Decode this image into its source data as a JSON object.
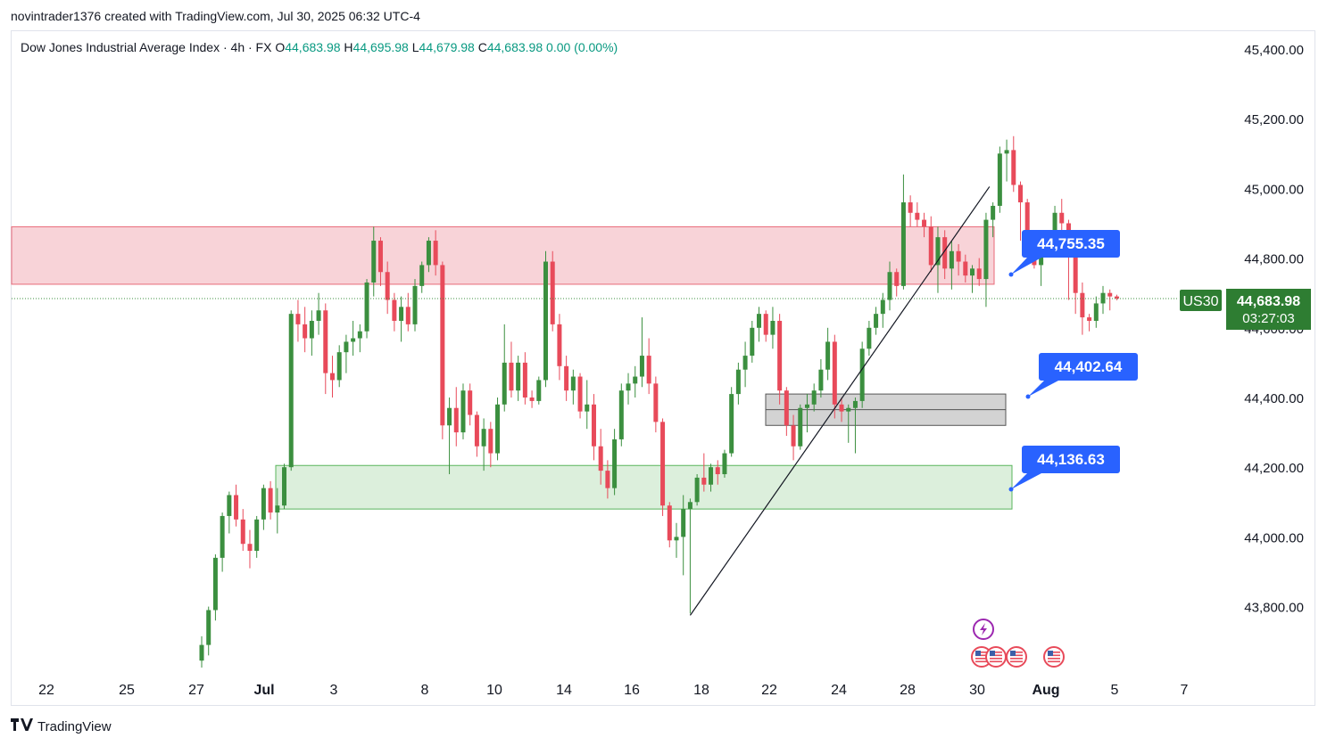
{
  "header": {
    "author_line": "novintrader1376 created with TradingView.com, Jul 30, 2025 06:32 UTC-4"
  },
  "legend": {
    "symbol": "Dow Jones Industrial Average Index · 4h · FX",
    "o_label": "O",
    "o": "44,683.98",
    "h_label": "H",
    "h": "44,695.98",
    "l_label": "L",
    "l": "44,679.98",
    "c_label": "C",
    "c": "44,683.98",
    "change": "0.00 (0.00%)"
  },
  "footer": {
    "brand": "TradingView",
    "logo": "tradingview-logo-icon"
  },
  "colors": {
    "up": "#3b8f3f",
    "down": "#e84a5a",
    "resistance_fill": "#f8d3d8",
    "resistance_stroke": "#e86a78",
    "support_fill": "#dcefdc",
    "support_stroke": "#5ab55c",
    "gray_zone": "#d3d3d3",
    "callout": "#2962ff",
    "price_badge": "#2e7d32"
  },
  "chart_data": {
    "type": "candlestick",
    "ylim": [
      43580,
      45460
    ],
    "y_ticks": [
      "45,400.00",
      "45,200.00",
      "45,000.00",
      "44,800.00",
      "44,600.00",
      "44,400.00",
      "44,200.00",
      "44,000.00",
      "43,800.00"
    ],
    "y_tick_values": [
      45400,
      45200,
      45000,
      44800,
      44600,
      44400,
      44200,
      44000,
      43800
    ],
    "x_ticks": [
      "22",
      "25",
      "27",
      "Jul",
      "3",
      "8",
      "10",
      "14",
      "16",
      "18",
      "22",
      "24",
      "28",
      "30",
      "Aug",
      "5",
      "7"
    ],
    "last_price": 44683.98,
    "ticker_badge": "US30",
    "price_badge": "44,683.98",
    "countdown": "03:27:03",
    "zones": [
      {
        "name": "resistance-zone",
        "from": 44725,
        "to": 44890
      },
      {
        "name": "support-zone",
        "from": 44080,
        "to": 44205
      },
      {
        "name": "gray-zone",
        "from": 44320,
        "to": 44410
      }
    ],
    "trendline": {
      "from": {
        "x": "Jul 16",
        "y": 43775
      },
      "to": {
        "x": "Jul 30",
        "y": 45005
      }
    },
    "callouts": [
      "44,755.35",
      "44,402.64",
      "44,136.63"
    ],
    "candles": [
      [
        43645,
        43715,
        43625,
        43690
      ],
      [
        43690,
        43800,
        43660,
        43790
      ],
      [
        43790,
        43950,
        43760,
        43940
      ],
      [
        43940,
        44070,
        43900,
        44060
      ],
      [
        44060,
        44130,
        44010,
        44120
      ],
      [
        44120,
        44150,
        44030,
        44050
      ],
      [
        44050,
        44080,
        43960,
        43980
      ],
      [
        43980,
        44020,
        43910,
        43960
      ],
      [
        43960,
        44060,
        43940,
        44050
      ],
      [
        44050,
        44150,
        44020,
        44140
      ],
      [
        44140,
        44160,
        44050,
        44070
      ],
      [
        44070,
        44140,
        44010,
        44090
      ],
      [
        44090,
        44210,
        44080,
        44200
      ],
      [
        44200,
        44650,
        44190,
        44640
      ],
      [
        44640,
        44680,
        44560,
        44610
      ],
      [
        44610,
        44660,
        44530,
        44570
      ],
      [
        44570,
        44650,
        44520,
        44620
      ],
      [
        44620,
        44700,
        44580,
        44650
      ],
      [
        44650,
        44670,
        44410,
        44470
      ],
      [
        44470,
        44520,
        44400,
        44450
      ],
      [
        44450,
        44550,
        44430,
        44530
      ],
      [
        44530,
        44580,
        44470,
        44560
      ],
      [
        44560,
        44620,
        44520,
        44570
      ],
      [
        44570,
        44610,
        44530,
        44590
      ],
      [
        44590,
        44740,
        44570,
        44730
      ],
      [
        44730,
        44890,
        44690,
        44850
      ],
      [
        44850,
        44860,
        44720,
        44760
      ],
      [
        44760,
        44790,
        44640,
        44680
      ],
      [
        44680,
        44700,
        44590,
        44620
      ],
      [
        44620,
        44690,
        44560,
        44660
      ],
      [
        44660,
        44700,
        44590,
        44610
      ],
      [
        44610,
        44740,
        44590,
        44720
      ],
      [
        44720,
        44790,
        44700,
        44780
      ],
      [
        44780,
        44860,
        44760,
        44850
      ],
      [
        44850,
        44880,
        44750,
        44780
      ],
      [
        44780,
        44790,
        44280,
        44320
      ],
      [
        44320,
        44400,
        44180,
        44370
      ],
      [
        44370,
        44430,
        44260,
        44300
      ],
      [
        44300,
        44440,
        44280,
        44420
      ],
      [
        44420,
        44440,
        44320,
        44350
      ],
      [
        44350,
        44360,
        44230,
        44260
      ],
      [
        44260,
        44340,
        44190,
        44310
      ],
      [
        44310,
        44330,
        44200,
        44240
      ],
      [
        44240,
        44400,
        44220,
        44380
      ],
      [
        44380,
        44610,
        44360,
        44500
      ],
      [
        44500,
        44560,
        44400,
        44420
      ],
      [
        44420,
        44520,
        44390,
        44500
      ],
      [
        44500,
        44530,
        44380,
        44400
      ],
      [
        44400,
        44420,
        44370,
        44390
      ],
      [
        44390,
        44460,
        44380,
        44450
      ],
      [
        44450,
        44820,
        44430,
        44790
      ],
      [
        44790,
        44820,
        44590,
        44610
      ],
      [
        44610,
        44640,
        44450,
        44490
      ],
      [
        44490,
        44520,
        44390,
        44420
      ],
      [
        44420,
        44480,
        44380,
        44460
      ],
      [
        44460,
        44470,
        44340,
        44360
      ],
      [
        44360,
        44450,
        44310,
        44380
      ],
      [
        44380,
        44410,
        44220,
        44260
      ],
      [
        44260,
        44310,
        44150,
        44190
      ],
      [
        44190,
        44220,
        44110,
        44140
      ],
      [
        44140,
        44310,
        44120,
        44280
      ],
      [
        44280,
        44440,
        44260,
        44420
      ],
      [
        44420,
        44470,
        44380,
        44440
      ],
      [
        44440,
        44490,
        44400,
        44460
      ],
      [
        44460,
        44630,
        44430,
        44520
      ],
      [
        44520,
        44570,
        44410,
        44440
      ],
      [
        44440,
        44460,
        44300,
        44330
      ],
      [
        44330,
        44340,
        44060,
        44090
      ],
      [
        44090,
        44100,
        43970,
        43990
      ],
      [
        43990,
        44040,
        43940,
        44000
      ],
      [
        44000,
        44120,
        43890,
        44080
      ],
      [
        44080,
        44110,
        43780,
        44100
      ],
      [
        44100,
        44180,
        44090,
        44170
      ],
      [
        44170,
        44240,
        44130,
        44150
      ],
      [
        44150,
        44210,
        44130,
        44200
      ],
      [
        44200,
        44220,
        44150,
        44180
      ],
      [
        44180,
        44250,
        44170,
        44240
      ],
      [
        44240,
        44430,
        44230,
        44410
      ],
      [
        44410,
        44500,
        44380,
        44480
      ],
      [
        44480,
        44560,
        44430,
        44520
      ],
      [
        44520,
        44620,
        44500,
        44600
      ],
      [
        44600,
        44660,
        44560,
        44640
      ],
      [
        44640,
        44650,
        44560,
        44580
      ],
      [
        44580,
        44660,
        44540,
        44620
      ],
      [
        44620,
        44640,
        44380,
        44420
      ],
      [
        44420,
        44430,
        44290,
        44320
      ],
      [
        44320,
        44350,
        44220,
        44260
      ],
      [
        44260,
        44380,
        44250,
        44370
      ],
      [
        44370,
        44410,
        44300,
        44380
      ],
      [
        44380,
        44440,
        44360,
        44420
      ],
      [
        44420,
        44510,
        44400,
        44480
      ],
      [
        44480,
        44600,
        44450,
        44560
      ],
      [
        44560,
        44580,
        44340,
        44380
      ],
      [
        44380,
        44400,
        44330,
        44360
      ],
      [
        44360,
        44380,
        44270,
        44370
      ],
      [
        44370,
        44400,
        44240,
        44390
      ],
      [
        44390,
        44560,
        44370,
        44540
      ],
      [
        44540,
        44620,
        44520,
        44600
      ],
      [
        44600,
        44660,
        44580,
        44640
      ],
      [
        44640,
        44700,
        44600,
        44680
      ],
      [
        44680,
        44790,
        44650,
        44760
      ],
      [
        44760,
        44770,
        44690,
        44720
      ],
      [
        44720,
        45040,
        44710,
        44960
      ],
      [
        44960,
        44980,
        44890,
        44930
      ],
      [
        44930,
        44960,
        44890,
        44910
      ],
      [
        44910,
        44930,
        44860,
        44890
      ],
      [
        44890,
        44920,
        44760,
        44780
      ],
      [
        44780,
        44890,
        44700,
        44860
      ],
      [
        44860,
        44880,
        44740,
        44770
      ],
      [
        44770,
        44850,
        44710,
        44820
      ],
      [
        44820,
        44840,
        44750,
        44790
      ],
      [
        44790,
        44810,
        44730,
        44750
      ],
      [
        44750,
        44780,
        44700,
        44770
      ],
      [
        44770,
        44800,
        44720,
        44740
      ],
      [
        44740,
        44930,
        44660,
        44910
      ],
      [
        44910,
        44960,
        44860,
        44950
      ],
      [
        44950,
        45120,
        44930,
        45100
      ],
      [
        45100,
        45140,
        45020,
        45110
      ],
      [
        45110,
        45150,
        44990,
        45010
      ],
      [
        45010,
        45020,
        44850,
        44960
      ],
      [
        44960,
        44970,
        44790,
        44810
      ],
      [
        44810,
        44830,
        44770,
        44780
      ],
      [
        44780,
        44850,
        44720,
        44830
      ],
      [
        44830,
        44880,
        44810,
        44860
      ],
      [
        44860,
        44950,
        44840,
        44930
      ],
      [
        44930,
        44970,
        44880,
        44900
      ],
      [
        44900,
        44910,
        44680,
        44850
      ],
      [
        44850,
        44860,
        44640,
        44700
      ],
      [
        44700,
        44730,
        44580,
        44630
      ],
      [
        44630,
        44640,
        44590,
        44620
      ],
      [
        44620,
        44690,
        44600,
        44670
      ],
      [
        44670,
        44720,
        44640,
        44700
      ],
      [
        44700,
        44710,
        44650,
        44690
      ],
      [
        44690,
        44695,
        44679,
        44684
      ]
    ]
  }
}
